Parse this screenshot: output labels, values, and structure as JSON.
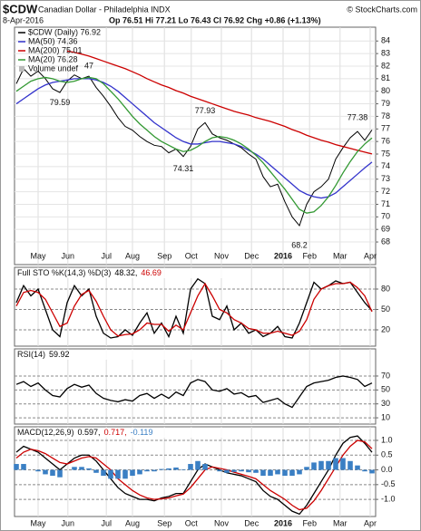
{
  "header": {
    "symbol": "$CDW",
    "name": "Canadian Dollar - Philadelphia INDX",
    "date": "8-Apr-2016",
    "quote": "Op 76.51 Hi 77.21 Lo 76.43 Cl 76.92 Chg +0.86 (+1.13%)",
    "source": "© StockCharts.com"
  },
  "chart_data": [
    {
      "type": "line",
      "grid": true,
      "x": [
        0,
        1,
        2,
        3,
        4,
        5,
        6,
        7,
        8,
        9,
        10,
        11,
        12,
        13,
        14,
        15,
        16,
        17,
        18,
        19,
        20,
        21,
        22,
        23,
        24,
        25,
        26,
        27,
        28,
        29,
        30,
        31,
        32,
        33,
        34,
        35,
        36,
        37,
        38,
        39,
        40,
        41,
        42,
        43,
        44,
        45,
        46,
        47,
        48,
        49
      ],
      "xlim": [
        -0.25,
        49.5
      ],
      "xticks": [
        {
          "value": 3,
          "label": "May"
        },
        {
          "value": 7.1,
          "label": "Jun"
        },
        {
          "value": 12.4,
          "label": "Jul"
        },
        {
          "value": 16,
          "label": "Aug"
        },
        {
          "value": 20.4,
          "label": "Sep"
        },
        {
          "value": 24.1,
          "label": "Oct"
        },
        {
          "value": 28.25,
          "label": "Nov"
        },
        {
          "value": 32.4,
          "label": "Dec"
        },
        {
          "value": 36.75,
          "label": "2016"
        },
        {
          "value": 40.4,
          "label": "Feb"
        },
        {
          "value": 44.6,
          "label": "Mar"
        },
        {
          "value": 48.75,
          "label": "Apr"
        }
      ],
      "ylim": [
        66.2,
        85.1
      ],
      "yticks": [
        68,
        69,
        70,
        71,
        72,
        73,
        74,
        75,
        76,
        77,
        78,
        79,
        80,
        81,
        82,
        83,
        84
      ],
      "series": [
        {
          "name": "$CDW (Daily) 76.92",
          "color": "#000000",
          "values": [
            80.6,
            81.8,
            81.2,
            81.6,
            81.0,
            80.2,
            79.9,
            80.8,
            81.3,
            81.0,
            81.2,
            80.3,
            79.6,
            78.8,
            77.9,
            77.2,
            76.9,
            76.4,
            76.0,
            75.7,
            75.6,
            75.1,
            75.4,
            74.8,
            75.6,
            77.0,
            77.5,
            76.6,
            76.3,
            76.1,
            75.8,
            75.5,
            75.0,
            74.6,
            73.2,
            72.4,
            72.6,
            71.2,
            70.0,
            69.3,
            71.0,
            72.0,
            72.4,
            73.0,
            74.6,
            75.5,
            76.3,
            76.8,
            76.1,
            76.92
          ]
        },
        {
          "name": "MA(50) 74.36",
          "color": "#3333cc",
          "values": [
            79.0,
            79.4,
            79.8,
            80.2,
            80.5,
            80.7,
            80.8,
            80.9,
            81.0,
            81.0,
            81.0,
            80.9,
            80.7,
            80.4,
            80.0,
            79.5,
            79.0,
            78.5,
            78.0,
            77.5,
            77.1,
            76.7,
            76.3,
            76.0,
            75.8,
            75.8,
            75.9,
            76.0,
            76.0,
            75.9,
            75.8,
            75.6,
            75.3,
            75.0,
            74.6,
            74.1,
            73.6,
            73.1,
            72.6,
            72.1,
            71.8,
            71.6,
            71.5,
            71.6,
            71.9,
            72.4,
            72.9,
            73.4,
            73.9,
            74.36
          ]
        },
        {
          "name": "MA(200) 75.01",
          "color": "#cc0000",
          "values": [
            null,
            null,
            null,
            null,
            null,
            null,
            null,
            83.2,
            83.1,
            82.95,
            82.8,
            82.6,
            82.4,
            82.2,
            82.0,
            81.8,
            81.55,
            81.3,
            81.0,
            80.75,
            80.5,
            80.3,
            80.05,
            79.85,
            79.6,
            79.4,
            79.2,
            79.0,
            78.8,
            78.6,
            78.4,
            78.25,
            78.1,
            77.9,
            77.75,
            77.6,
            77.4,
            77.2,
            76.95,
            76.75,
            76.5,
            76.3,
            76.1,
            75.95,
            75.75,
            75.6,
            75.45,
            75.3,
            75.15,
            75.01
          ]
        },
        {
          "name": "MA(20) 76.28",
          "color": "#339933",
          "values": [
            80.0,
            80.4,
            80.8,
            81.0,
            81.1,
            81.0,
            80.8,
            80.7,
            80.8,
            81.0,
            81.1,
            81.0,
            80.6,
            80.0,
            79.4,
            78.7,
            78.0,
            77.4,
            76.9,
            76.4,
            76.0,
            75.7,
            75.4,
            75.2,
            75.3,
            75.6,
            76.0,
            76.3,
            76.4,
            76.3,
            76.1,
            75.8,
            75.4,
            74.9,
            74.3,
            73.6,
            72.9,
            72.2,
            71.4,
            70.6,
            70.3,
            70.4,
            70.9,
            71.6,
            72.5,
            73.5,
            74.4,
            75.2,
            75.8,
            76.28
          ]
        }
      ],
      "legend_extra": [
        "Volume undef"
      ],
      "annotations": [
        {
          "x": 6,
          "y": 79.59
        },
        {
          "x": 10,
          "y": 81.47,
          "label": "47"
        },
        {
          "x": 23,
          "y": 74.31
        },
        {
          "x": 26,
          "y": 77.93
        },
        {
          "x": 39,
          "y": 68.2
        },
        {
          "x": 47,
          "y": 77.38
        }
      ]
    },
    {
      "type": "line",
      "title": "Full STO %K(14,3) %D(3)",
      "grid": true,
      "x": [
        0,
        1,
        2,
        3,
        4,
        5,
        6,
        7,
        8,
        9,
        10,
        11,
        12,
        13,
        14,
        15,
        16,
        17,
        18,
        19,
        20,
        21,
        22,
        23,
        24,
        25,
        26,
        27,
        28,
        29,
        30,
        31,
        32,
        33,
        34,
        35,
        36,
        37,
        38,
        39,
        40,
        41,
        42,
        43,
        44,
        45,
        46,
        47,
        48,
        49
      ],
      "xlim": [
        -0.25,
        49.5
      ],
      "ylim": [
        -4,
        112
      ],
      "yticks": [
        20,
        50,
        80
      ],
      "series": [
        {
          "name": "48.32,",
          "color": "#000000",
          "values": [
            60,
            85,
            70,
            80,
            50,
            20,
            10,
            60,
            85,
            70,
            80,
            40,
            15,
            8,
            10,
            20,
            12,
            30,
            45,
            15,
            30,
            10,
            40,
            15,
            80,
            95,
            88,
            40,
            35,
            55,
            20,
            30,
            15,
            20,
            10,
            15,
            25,
            10,
            8,
            30,
            60,
            90,
            80,
            85,
            92,
            88,
            90,
            75,
            60,
            48.32
          ]
        },
        {
          "name": "46.69",
          "color": "#cc0000",
          "values": [
            55,
            75,
            78,
            75,
            65,
            45,
            25,
            30,
            55,
            72,
            78,
            62,
            40,
            20,
            11,
            13,
            14,
            20,
            30,
            28,
            28,
            18,
            27,
            20,
            45,
            70,
            88,
            70,
            50,
            45,
            35,
            30,
            22,
            20,
            15,
            15,
            18,
            15,
            12,
            18,
            35,
            65,
            80,
            85,
            88,
            88,
            90,
            82,
            70,
            46.69
          ]
        }
      ]
    },
    {
      "type": "line",
      "title": "RSI(14)",
      "grid": true,
      "x": [
        0,
        1,
        2,
        3,
        4,
        5,
        6,
        7,
        8,
        9,
        10,
        11,
        12,
        13,
        14,
        15,
        16,
        17,
        18,
        19,
        20,
        21,
        22,
        23,
        24,
        25,
        26,
        27,
        28,
        29,
        30,
        31,
        32,
        33,
        34,
        35,
        36,
        37,
        38,
        39,
        40,
        41,
        42,
        43,
        44,
        45,
        46,
        47,
        48,
        49
      ],
      "xlim": [
        -0.25,
        49.5
      ],
      "ylim": [
        1,
        109
      ],
      "yticks": [
        10,
        30,
        50,
        70
      ],
      "series": [
        {
          "name": "59.92",
          "color": "#000000",
          "values": [
            58,
            62,
            55,
            60,
            50,
            42,
            40,
            52,
            58,
            54,
            57,
            45,
            38,
            35,
            33,
            36,
            34,
            42,
            45,
            38,
            44,
            38,
            47,
            42,
            60,
            65,
            62,
            50,
            48,
            52,
            44,
            46,
            40,
            42,
            32,
            35,
            38,
            30,
            25,
            40,
            55,
            60,
            62,
            64,
            68,
            70,
            68,
            65,
            55,
            59.92
          ]
        }
      ]
    },
    {
      "type": "line",
      "title": "MACD(12,26,9)",
      "grid": true,
      "x": [
        0,
        1,
        2,
        3,
        4,
        5,
        6,
        7,
        8,
        9,
        10,
        11,
        12,
        13,
        14,
        15,
        16,
        17,
        18,
        19,
        20,
        21,
        22,
        23,
        24,
        25,
        26,
        27,
        28,
        29,
        30,
        31,
        32,
        33,
        34,
        35,
        36,
        37,
        38,
        39,
        40,
        41,
        42,
        43,
        44,
        45,
        46,
        47,
        48,
        49
      ],
      "xlim": [
        -0.25,
        49.5
      ],
      "xticks": [
        {
          "value": 3,
          "label": "May"
        },
        {
          "value": 7.1,
          "label": "Jun"
        },
        {
          "value": 12.4,
          "label": "Jul"
        },
        {
          "value": 16,
          "label": "Aug"
        },
        {
          "value": 20.4,
          "label": "Sep"
        },
        {
          "value": 24.1,
          "label": "Oct"
        },
        {
          "value": 28.25,
          "label": "Nov"
        },
        {
          "value": 32.4,
          "label": "Dec"
        },
        {
          "value": 36.75,
          "label": "2016"
        },
        {
          "value": 40.4,
          "label": "Feb"
        },
        {
          "value": 44.6,
          "label": "Mar"
        },
        {
          "value": 48.75,
          "label": "Apr"
        }
      ],
      "ylim": [
        -1.58,
        1.46
      ],
      "yticks": [
        {
          "value": -1,
          "label": "-1.0"
        },
        {
          "value": -0.5,
          "label": "-0.5"
        },
        {
          "value": 0,
          "label": "0.0"
        },
        {
          "value": 0.5,
          "label": "0.5"
        },
        {
          "value": 1,
          "label": "1.0"
        }
      ],
      "series": [
        {
          "name": "0.597,",
          "color": "#000000",
          "values": [
            0.6,
            0.8,
            0.7,
            0.6,
            0.4,
            0.2,
            0.0,
            0.2,
            0.4,
            0.5,
            0.5,
            0.3,
            0.0,
            -0.3,
            -0.6,
            -0.8,
            -0.9,
            -1.0,
            -1.0,
            -1.05,
            -0.95,
            -0.9,
            -0.8,
            -0.8,
            -0.4,
            0.0,
            0.2,
            0.1,
            0.0,
            -0.1,
            -0.15,
            -0.2,
            -0.3,
            -0.4,
            -0.7,
            -0.9,
            -1.0,
            -1.2,
            -1.4,
            -1.5,
            -1.2,
            -0.8,
            -0.4,
            0.0,
            0.5,
            0.9,
            1.1,
            1.15,
            0.9,
            0.597
          ]
        },
        {
          "name": "0.717,",
          "color": "#cc0000",
          "values": [
            0.4,
            0.6,
            0.7,
            0.65,
            0.55,
            0.4,
            0.25,
            0.2,
            0.3,
            0.4,
            0.45,
            0.4,
            0.2,
            0.0,
            -0.3,
            -0.5,
            -0.7,
            -0.85,
            -0.95,
            -1.0,
            -0.98,
            -0.95,
            -0.88,
            -0.82,
            -0.6,
            -0.3,
            0.0,
            0.1,
            0.05,
            0.0,
            -0.08,
            -0.15,
            -0.22,
            -0.3,
            -0.5,
            -0.7,
            -0.85,
            -1.0,
            -1.2,
            -1.35,
            -1.3,
            -1.05,
            -0.7,
            -0.3,
            0.1,
            0.5,
            0.8,
            1.0,
            0.95,
            0.717
          ]
        },
        {
          "name": "-0.119",
          "color": "#3a7fc4",
          "type": "bar",
          "values": [
            0.2,
            0.2,
            0,
            -0.05,
            -0.15,
            -0.2,
            -0.25,
            0,
            0.1,
            0.1,
            0.05,
            -0.1,
            -0.2,
            -0.3,
            -0.3,
            -0.3,
            -0.2,
            -0.15,
            -0.05,
            -0.05,
            0.03,
            0.05,
            0.08,
            0.02,
            0.2,
            0.3,
            0.2,
            0,
            -0.05,
            -0.1,
            -0.07,
            -0.05,
            -0.08,
            -0.1,
            -0.2,
            -0.2,
            -0.15,
            -0.2,
            -0.2,
            -0.15,
            0.1,
            0.25,
            0.3,
            0.3,
            0.4,
            0.4,
            0.3,
            0.15,
            -0.05,
            -0.119
          ]
        }
      ]
    }
  ]
}
